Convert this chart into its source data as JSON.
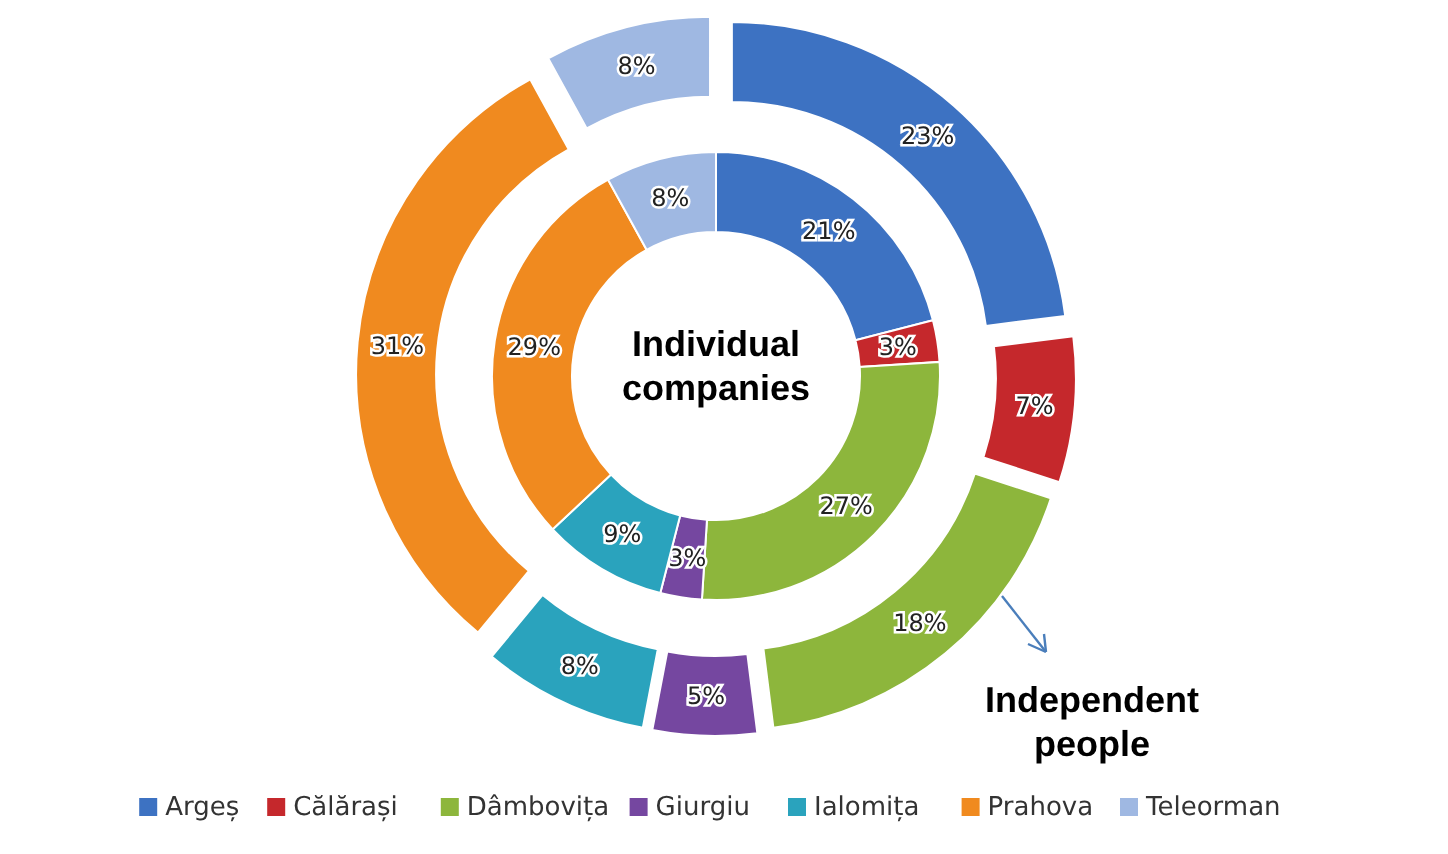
{
  "chart_data": {
    "type": "donut",
    "categories": [
      "Argeș",
      "Călărași",
      "Dâmbovița",
      "Giurgiu",
      "Ialomița",
      "Prahova",
      "Teleorman"
    ],
    "colors": [
      "#3d72c2",
      "#c5282c",
      "#8db63c",
      "#7547a0",
      "#2aa3bd",
      "#f08a1f",
      "#9fb8e2"
    ],
    "series": [
      {
        "name": "Individual companies",
        "values": [
          21,
          3,
          27,
          3,
          9,
          29,
          8
        ],
        "value_labels": [
          "21%",
          "3%",
          "27%",
          "3%",
          "9%",
          "29%",
          "8%"
        ]
      },
      {
        "name": "Independent people",
        "values": [
          23,
          7,
          18,
          5,
          8,
          31,
          8
        ],
        "value_labels": [
          "23%",
          "7%",
          "18%",
          "5%",
          "8%",
          "31%",
          "8%"
        ]
      }
    ],
    "legend": "bottom"
  }
}
